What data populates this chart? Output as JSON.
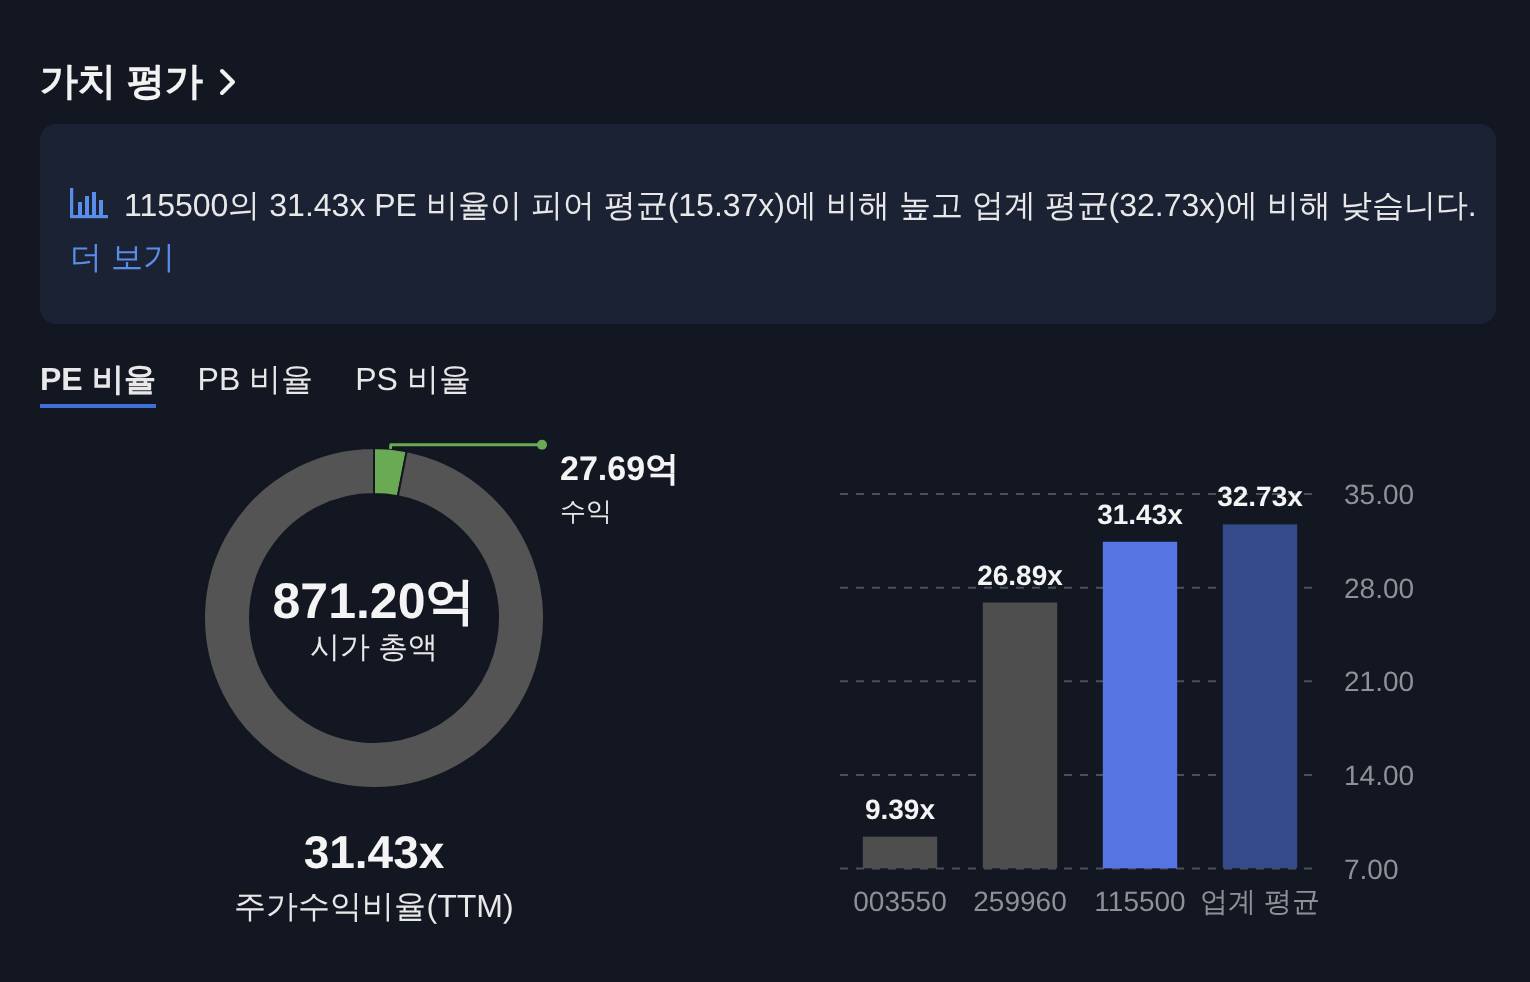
{
  "chart_data": [
    {
      "type": "other",
      "title": "가치 평가",
      "annotations": [
        "115500의 31.43x PE 비율이 피어 평균(15.37x)에 비해 높고 업계 평균(32.73x)에 비해 낮습니다.",
        "더 보기",
        "PE 비율",
        "PB 비율",
        "PS 비율"
      ]
    },
    {
      "type": "donut",
      "categories": [
        "수익",
        "시가 총액"
      ],
      "values": [
        27.69,
        871.2
      ],
      "colors": [
        "#6aaa55",
        "#545454"
      ],
      "value_labels": [
        "27.69억",
        "871.20억"
      ],
      "annotations": [
        "31.43x",
        "주가수익비율(TTM)"
      ]
    },
    {
      "type": "bar",
      "categories": [
        "003550",
        "259960",
        "115500",
        "업계 평균"
      ],
      "values": [
        9.39,
        26.89,
        31.43,
        32.73
      ],
      "colors": [
        "#4e4e4e",
        "#4e4e4e",
        "#5675e3",
        "#354a8b"
      ],
      "value_labels": [
        "9.39x",
        "26.89x",
        "31.43x",
        "32.73x"
      ],
      "ylim": [
        7,
        35
      ],
      "yticks": [
        {
          "value": 7,
          "label": "7.00"
        },
        {
          "value": 14,
          "label": "14.00"
        },
        {
          "value": 21,
          "label": "21.00"
        },
        {
          "value": 28,
          "label": "28.00"
        },
        {
          "value": 35,
          "label": "35.00"
        }
      ],
      "grid": "y"
    }
  ]
}
